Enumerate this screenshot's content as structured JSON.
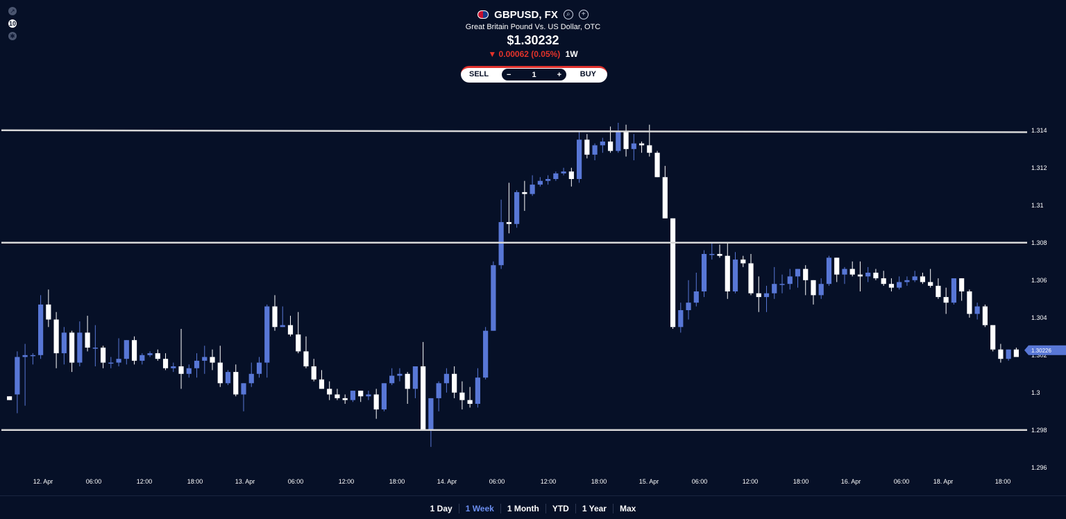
{
  "header": {
    "symbol": "GBPUSD, FX",
    "subtitle": "Great Britain Pound Vs. US Dollar, OTC",
    "price": "$1.30232",
    "change": "▼ 0.00062 (0.05%)",
    "period": "1W"
  },
  "trade": {
    "sell_label": "SELL",
    "buy_label": "BUY",
    "quantity": "1",
    "minus": "−",
    "plus": "+"
  },
  "left_tools": {
    "tool2": "10"
  },
  "ranges": [
    "1 Day",
    "1 Week",
    "1 Month",
    "YTD",
    "1 Year",
    "Max"
  ],
  "active_range": "1 Week",
  "colors": {
    "background": "#061027",
    "up": "#5877d6",
    "down": "#ffffff",
    "line": "#d7d7d7",
    "sell": "#e0322e",
    "buy": "#2fb34a",
    "active_range": "#6b8ef0"
  },
  "chart_data": {
    "type": "candlestick",
    "y_ticks": [
      "1.296",
      "1.298",
      "1.3",
      "1.302",
      "1.304",
      "1.306",
      "1.308",
      "1.31",
      "1.312",
      "1.314"
    ],
    "ylim": [
      1.2954,
      1.3154
    ],
    "x_ticks": [
      "12. Apr",
      "06:00",
      "12:00",
      "18:00",
      "13. Apr",
      "06:00",
      "12:00",
      "18:00",
      "14. Apr",
      "06:00",
      "12:00",
      "18:00",
      "15. Apr",
      "06:00",
      "12:00",
      "18:00",
      "16. Apr",
      "06:00",
      "18. Apr",
      "18:00"
    ],
    "current_price_label": "1.30226",
    "current_price": 1.30226,
    "horizontal_lines": [
      {
        "from": 1.314,
        "to": 1.3139
      },
      {
        "from": 1.308,
        "to": 1.308
      },
      {
        "from": 1.298,
        "to": 1.298
      }
    ],
    "candles": [
      {
        "o": 1.2998,
        "h": 1.2996,
        "l": 1.2996,
        "c": 1.2996
      },
      {
        "o": 1.2999,
        "h": 1.3022,
        "l": 1.2989,
        "c": 1.3019
      },
      {
        "o": 1.3019,
        "h": 1.3026,
        "l": 1.2993,
        "c": 1.302
      },
      {
        "o": 1.302,
        "h": 1.3021,
        "l": 1.3015,
        "c": 1.302
      },
      {
        "o": 1.302,
        "h": 1.3052,
        "l": 1.3018,
        "c": 1.3047
      },
      {
        "o": 1.3047,
        "h": 1.3055,
        "l": 1.3035,
        "c": 1.3039
      },
      {
        "o": 1.3039,
        "h": 1.3043,
        "l": 1.3013,
        "c": 1.3021
      },
      {
        "o": 1.3021,
        "h": 1.3035,
        "l": 1.3015,
        "c": 1.3032
      },
      {
        "o": 1.3032,
        "h": 1.3033,
        "l": 1.3011,
        "c": 1.3016
      },
      {
        "o": 1.3016,
        "h": 1.3038,
        "l": 1.3014,
        "c": 1.3032
      },
      {
        "o": 1.3032,
        "h": 1.3041,
        "l": 1.3022,
        "c": 1.3024
      },
      {
        "o": 1.3024,
        "h": 1.3036,
        "l": 1.3014,
        "c": 1.3024
      },
      {
        "o": 1.3024,
        "h": 1.3025,
        "l": 1.3013,
        "c": 1.3016
      },
      {
        "o": 1.3016,
        "h": 1.3019,
        "l": 1.3013,
        "c": 1.3016
      },
      {
        "o": 1.3016,
        "h": 1.3029,
        "l": 1.3014,
        "c": 1.3018
      },
      {
        "o": 1.3018,
        "h": 1.3027,
        "l": 1.3015,
        "c": 1.3028
      },
      {
        "o": 1.3028,
        "h": 1.303,
        "l": 1.3015,
        "c": 1.3017
      },
      {
        "o": 1.3017,
        "h": 1.3021,
        "l": 1.3015,
        "c": 1.302
      },
      {
        "o": 1.302,
        "h": 1.3022,
        "l": 1.3019,
        "c": 1.3021
      },
      {
        "o": 1.3021,
        "h": 1.3023,
        "l": 1.3017,
        "c": 1.3018
      },
      {
        "o": 1.3018,
        "h": 1.3021,
        "l": 1.3012,
        "c": 1.3013
      },
      {
        "o": 1.3013,
        "h": 1.3016,
        "l": 1.3011,
        "c": 1.3014
      },
      {
        "o": 1.3014,
        "h": 1.3034,
        "l": 1.3002,
        "c": 1.301
      },
      {
        "o": 1.301,
        "h": 1.3015,
        "l": 1.3008,
        "c": 1.3013
      },
      {
        "o": 1.3013,
        "h": 1.3021,
        "l": 1.3008,
        "c": 1.3017
      },
      {
        "o": 1.3017,
        "h": 1.3025,
        "l": 1.301,
        "c": 1.3019
      },
      {
        "o": 1.3019,
        "h": 1.3023,
        "l": 1.3012,
        "c": 1.3016
      },
      {
        "o": 1.3016,
        "h": 1.3025,
        "l": 1.3003,
        "c": 1.3005
      },
      {
        "o": 1.3005,
        "h": 1.3012,
        "l": 1.3004,
        "c": 1.3011
      },
      {
        "o": 1.3011,
        "h": 1.3015,
        "l": 1.2998,
        "c": 1.2999
      },
      {
        "o": 1.2999,
        "h": 1.3005,
        "l": 1.299,
        "c": 1.3005
      },
      {
        "o": 1.3005,
        "h": 1.3016,
        "l": 1.3003,
        "c": 1.301
      },
      {
        "o": 1.301,
        "h": 1.3019,
        "l": 1.3008,
        "c": 1.3016
      },
      {
        "o": 1.3016,
        "h": 1.3047,
        "l": 1.3008,
        "c": 1.3046
      },
      {
        "o": 1.3046,
        "h": 1.3052,
        "l": 1.3033,
        "c": 1.3035
      },
      {
        "o": 1.3035,
        "h": 1.3046,
        "l": 1.3035,
        "c": 1.3036
      },
      {
        "o": 1.3036,
        "h": 1.3041,
        "l": 1.303,
        "c": 1.3031
      },
      {
        "o": 1.3031,
        "h": 1.3043,
        "l": 1.3021,
        "c": 1.3022
      },
      {
        "o": 1.3022,
        "h": 1.303,
        "l": 1.3013,
        "c": 1.3014
      },
      {
        "o": 1.3014,
        "h": 1.3018,
        "l": 1.3006,
        "c": 1.3007
      },
      {
        "o": 1.3007,
        "h": 1.3012,
        "l": 1.3002,
        "c": 1.3002
      },
      {
        "o": 1.3002,
        "h": 1.3006,
        "l": 1.2996,
        "c": 1.2999
      },
      {
        "o": 1.2999,
        "h": 1.3002,
        "l": 1.2996,
        "c": 1.2997
      },
      {
        "o": 1.2997,
        "h": 1.2999,
        "l": 1.2994,
        "c": 1.2996
      },
      {
        "o": 1.2996,
        "h": 1.3,
        "l": 1.2995,
        "c": 1.3001
      },
      {
        "o": 1.3001,
        "h": 1.3001,
        "l": 1.2995,
        "c": 1.2998
      },
      {
        "o": 1.2998,
        "h": 1.3001,
        "l": 1.2996,
        "c": 1.2999
      },
      {
        "o": 1.2999,
        "h": 1.3002,
        "l": 1.2986,
        "c": 1.2991
      },
      {
        "o": 1.2991,
        "h": 1.3005,
        "l": 1.299,
        "c": 1.3005
      },
      {
        "o": 1.3005,
        "h": 1.3013,
        "l": 1.3004,
        "c": 1.3009
      },
      {
        "o": 1.3009,
        "h": 1.3013,
        "l": 1.3006,
        "c": 1.301
      },
      {
        "o": 1.301,
        "h": 1.3011,
        "l": 1.2994,
        "c": 1.3002
      },
      {
        "o": 1.3002,
        "h": 1.3014,
        "l": 1.2997,
        "c": 1.3014
      },
      {
        "o": 1.3014,
        "h": 1.3027,
        "l": 1.298,
        "c": 1.298
      },
      {
        "o": 1.298,
        "h": 1.2997,
        "l": 1.2971,
        "c": 1.2997
      },
      {
        "o": 1.2997,
        "h": 1.3006,
        "l": 1.299,
        "c": 1.3005
      },
      {
        "o": 1.3005,
        "h": 1.3013,
        "l": 1.3,
        "c": 1.301
      },
      {
        "o": 1.301,
        "h": 1.3014,
        "l": 1.2997,
        "c": 1.3
      },
      {
        "o": 1.3,
        "h": 1.3006,
        "l": 1.2991,
        "c": 1.2996
      },
      {
        "o": 1.2996,
        "h": 1.3003,
        "l": 1.2992,
        "c": 1.2994
      },
      {
        "o": 1.2994,
        "h": 1.3013,
        "l": 1.2992,
        "c": 1.3008
      },
      {
        "o": 1.3008,
        "h": 1.3035,
        "l": 1.3007,
        "c": 1.3033
      },
      {
        "o": 1.3033,
        "h": 1.307,
        "l": 1.3033,
        "c": 1.3068
      },
      {
        "o": 1.3068,
        "h": 1.3103,
        "l": 1.3066,
        "c": 1.3091
      },
      {
        "o": 1.3091,
        "h": 1.3112,
        "l": 1.3085,
        "c": 1.309
      },
      {
        "o": 1.309,
        "h": 1.3108,
        "l": 1.3088,
        "c": 1.3107
      },
      {
        "o": 1.3107,
        "h": 1.3113,
        "l": 1.3097,
        "c": 1.3106
      },
      {
        "o": 1.3106,
        "h": 1.3116,
        "l": 1.3105,
        "c": 1.3111
      },
      {
        "o": 1.3111,
        "h": 1.3115,
        "l": 1.311,
        "c": 1.3113
      },
      {
        "o": 1.3113,
        "h": 1.3116,
        "l": 1.3111,
        "c": 1.3114
      },
      {
        "o": 1.3114,
        "h": 1.3118,
        "l": 1.3113,
        "c": 1.3117
      },
      {
        "o": 1.3117,
        "h": 1.312,
        "l": 1.3116,
        "c": 1.3118
      },
      {
        "o": 1.3118,
        "h": 1.312,
        "l": 1.311,
        "c": 1.3114
      },
      {
        "o": 1.3114,
        "h": 1.3139,
        "l": 1.3112,
        "c": 1.3135
      },
      {
        "o": 1.3135,
        "h": 1.3138,
        "l": 1.3125,
        "c": 1.3127
      },
      {
        "o": 1.3127,
        "h": 1.3133,
        "l": 1.3124,
        "c": 1.3132
      },
      {
        "o": 1.3132,
        "h": 1.3136,
        "l": 1.3128,
        "c": 1.3134
      },
      {
        "o": 1.3134,
        "h": 1.3142,
        "l": 1.3128,
        "c": 1.3129
      },
      {
        "o": 1.3129,
        "h": 1.3144,
        "l": 1.3128,
        "c": 1.3139
      },
      {
        "o": 1.3139,
        "h": 1.3143,
        "l": 1.3126,
        "c": 1.313
      },
      {
        "o": 1.313,
        "h": 1.3138,
        "l": 1.3124,
        "c": 1.3133
      },
      {
        "o": 1.3133,
        "h": 1.3134,
        "l": 1.3128,
        "c": 1.3132
      },
      {
        "o": 1.3132,
        "h": 1.3143,
        "l": 1.3126,
        "c": 1.3128
      },
      {
        "o": 1.3128,
        "h": 1.3129,
        "l": 1.3115,
        "c": 1.3115
      },
      {
        "o": 1.3115,
        "h": 1.3121,
        "l": 1.3093,
        "c": 1.3093
      },
      {
        "o": 1.3093,
        "h": 1.3093,
        "l": 1.3034,
        "c": 1.3035
      },
      {
        "o": 1.3035,
        "h": 1.3048,
        "l": 1.3032,
        "c": 1.3044
      },
      {
        "o": 1.3044,
        "h": 1.306,
        "l": 1.3039,
        "c": 1.3048
      },
      {
        "o": 1.3048,
        "h": 1.3064,
        "l": 1.3046,
        "c": 1.3054
      },
      {
        "o": 1.3054,
        "h": 1.3076,
        "l": 1.3051,
        "c": 1.3074
      },
      {
        "o": 1.3074,
        "h": 1.308,
        "l": 1.3071,
        "c": 1.3074
      },
      {
        "o": 1.3074,
        "h": 1.3079,
        "l": 1.3072,
        "c": 1.3073
      },
      {
        "o": 1.3073,
        "h": 1.308,
        "l": 1.305,
        "c": 1.3054
      },
      {
        "o": 1.3054,
        "h": 1.3075,
        "l": 1.3053,
        "c": 1.3071
      },
      {
        "o": 1.3071,
        "h": 1.3073,
        "l": 1.3067,
        "c": 1.3069
      },
      {
        "o": 1.3069,
        "h": 1.3074,
        "l": 1.3052,
        "c": 1.3053
      },
      {
        "o": 1.3053,
        "h": 1.3062,
        "l": 1.3043,
        "c": 1.3051
      },
      {
        "o": 1.3051,
        "h": 1.3057,
        "l": 1.3043,
        "c": 1.3053
      },
      {
        "o": 1.3053,
        "h": 1.3067,
        "l": 1.305,
        "c": 1.3058
      },
      {
        "o": 1.3058,
        "h": 1.3063,
        "l": 1.3053,
        "c": 1.3058
      },
      {
        "o": 1.3058,
        "h": 1.3066,
        "l": 1.3055,
        "c": 1.3062
      },
      {
        "o": 1.3062,
        "h": 1.3064,
        "l": 1.3056,
        "c": 1.3066
      },
      {
        "o": 1.3066,
        "h": 1.3068,
        "l": 1.3052,
        "c": 1.306
      },
      {
        "o": 1.306,
        "h": 1.306,
        "l": 1.3047,
        "c": 1.3052
      },
      {
        "o": 1.3052,
        "h": 1.3061,
        "l": 1.305,
        "c": 1.3058
      },
      {
        "o": 1.3058,
        "h": 1.3073,
        "l": 1.3057,
        "c": 1.3072
      },
      {
        "o": 1.3072,
        "h": 1.3072,
        "l": 1.3059,
        "c": 1.3063
      },
      {
        "o": 1.3063,
        "h": 1.3067,
        "l": 1.3058,
        "c": 1.3066
      },
      {
        "o": 1.3066,
        "h": 1.307,
        "l": 1.3062,
        "c": 1.3063
      },
      {
        "o": 1.3063,
        "h": 1.307,
        "l": 1.3054,
        "c": 1.3062
      },
      {
        "o": 1.3062,
        "h": 1.3067,
        "l": 1.3059,
        "c": 1.3064
      },
      {
        "o": 1.3064,
        "h": 1.3066,
        "l": 1.306,
        "c": 1.3061
      },
      {
        "o": 1.3061,
        "h": 1.3065,
        "l": 1.3057,
        "c": 1.3058
      },
      {
        "o": 1.3058,
        "h": 1.3061,
        "l": 1.3054,
        "c": 1.3056
      },
      {
        "o": 1.3056,
        "h": 1.3062,
        "l": 1.3055,
        "c": 1.3059
      },
      {
        "o": 1.3059,
        "h": 1.3062,
        "l": 1.3057,
        "c": 1.306
      },
      {
        "o": 1.306,
        "h": 1.3065,
        "l": 1.3059,
        "c": 1.3062
      },
      {
        "o": 1.3062,
        "h": 1.3064,
        "l": 1.3058,
        "c": 1.3059
      },
      {
        "o": 1.3059,
        "h": 1.3066,
        "l": 1.3056,
        "c": 1.3057
      },
      {
        "o": 1.3057,
        "h": 1.3061,
        "l": 1.305,
        "c": 1.3051
      },
      {
        "o": 1.3051,
        "h": 1.3056,
        "l": 1.3042,
        "c": 1.3048
      },
      {
        "o": 1.3048,
        "h": 1.3061,
        "l": 1.3047,
        "c": 1.3061
      },
      {
        "o": 1.3061,
        "h": 1.3061,
        "l": 1.3049,
        "c": 1.3054
      },
      {
        "o": 1.3054,
        "h": 1.3055,
        "l": 1.304,
        "c": 1.3042
      },
      {
        "o": 1.3042,
        "h": 1.3048,
        "l": 1.3039,
        "c": 1.3046
      },
      {
        "o": 1.3046,
        "h": 1.3047,
        "l": 1.3035,
        "c": 1.3036
      },
      {
        "o": 1.3036,
        "h": 1.3036,
        "l": 1.3022,
        "c": 1.3023
      },
      {
        "o": 1.3023,
        "h": 1.3026,
        "l": 1.3016,
        "c": 1.3018
      },
      {
        "o": 1.3018,
        "h": 1.3023,
        "l": 1.3017,
        "c": 1.3023
      },
      {
        "o": 1.3023,
        "h": 1.3024,
        "l": 1.302,
        "c": 1.3019
      }
    ]
  }
}
